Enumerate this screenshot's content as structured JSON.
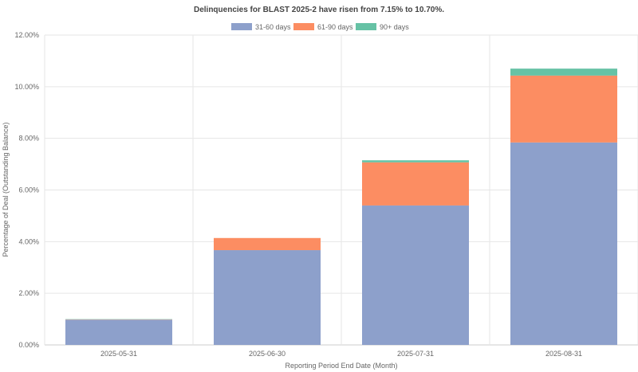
{
  "chart_data": {
    "type": "bar",
    "stacked": true,
    "title": "Delinquencies for BLAST 2025-2 have risen from 7.15% to 10.70%.",
    "xlabel": "Reporting Period End Date (Month)",
    "ylabel": "Percentage of Deal (Outstanding Balance)",
    "categories": [
      "2025-05-31",
      "2025-06-30",
      "2025-07-31",
      "2025-08-31"
    ],
    "series": [
      {
        "name": "31-60 days",
        "color": "#8da0cb",
        "values": [
          0.98,
          3.67,
          5.4,
          7.84
        ]
      },
      {
        "name": "61-90 days",
        "color": "#fc8d62",
        "values": [
          0.01,
          0.47,
          1.67,
          2.59
        ]
      },
      {
        "name": "90+ days",
        "color": "#66c2a5",
        "values": [
          0.01,
          0.0,
          0.08,
          0.27
        ]
      }
    ],
    "ylim": [
      0,
      12
    ],
    "yticks": [
      "0.00%",
      "2.00%",
      "4.00%",
      "6.00%",
      "8.00%",
      "10.00%",
      "12.00%"
    ],
    "grid": true,
    "legend": "top-center"
  }
}
